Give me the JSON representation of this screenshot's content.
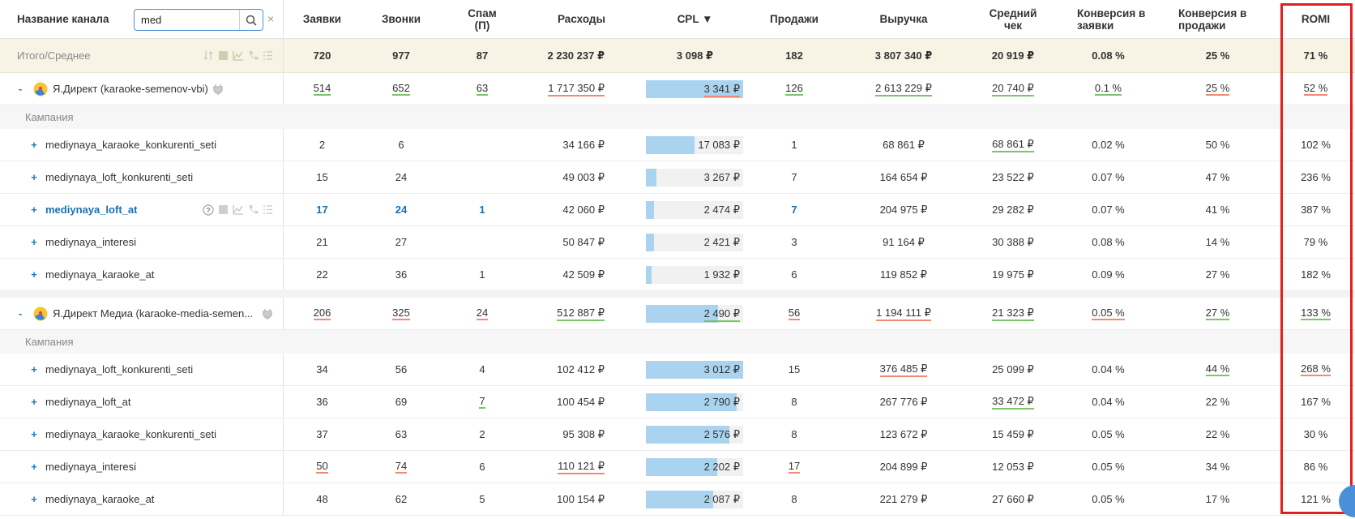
{
  "header": {
    "channel_name": "Название канала",
    "search_value": "med",
    "clear": "×",
    "cols": [
      "Заявки",
      "Звонки",
      "Спам (П)",
      "Расходы",
      "CPL ▼",
      "Продажи",
      "Выручка",
      "Средний чек",
      "Конверсия в заявки",
      "Конверсия в продажи",
      "ROMI"
    ]
  },
  "total": {
    "label": "Итого/Среднее",
    "vals": [
      "720",
      "977",
      "87",
      "2 230 237 ₽",
      "3 098 ₽",
      "182",
      "3 807 340 ₽",
      "20 919 ₽",
      "0.08 %",
      "25 %",
      "71 %"
    ]
  },
  "section_label": "Кампания",
  "groups": [
    {
      "name": "Я.Директ (karaoke-semenov-vbi)",
      "vals": [
        "514",
        "652",
        "63",
        "1 717 350 ₽",
        "3 341 ₽",
        "126",
        "2 613 229 ₽",
        "20 740 ₽",
        "0.1 %",
        "25 %",
        "52 %"
      ],
      "cpl_fill": 1.0,
      "rows": [
        {
          "name": "mediynaya_karaoke_konkurenti_seti",
          "vals": [
            "2",
            "6",
            "",
            "34 166 ₽",
            "17 083 ₽",
            "1",
            "68 861 ₽",
            "68 861 ₽",
            "0.02 %",
            "50 %",
            "102 %"
          ],
          "cpl_fill": 0.5
        },
        {
          "name": "mediynaya_loft_konkurenti_seti",
          "vals": [
            "15",
            "24",
            "",
            "49 003 ₽",
            "3 267 ₽",
            "7",
            "164 654 ₽",
            "23 522 ₽",
            "0.07 %",
            "47 %",
            "236 %"
          ],
          "cpl_fill": 0.11
        },
        {
          "name": "mediynaya_loft_at",
          "vals": [
            "17",
            "24",
            "1",
            "42 060 ₽",
            "2 474 ₽",
            "7",
            "204 975 ₽",
            "29 282 ₽",
            "0.07 %",
            "41 %",
            "387 %"
          ],
          "cpl_fill": 0.08
        },
        {
          "name": "mediynaya_interesi",
          "vals": [
            "21",
            "27",
            "",
            "50 847 ₽",
            "2 421 ₽",
            "3",
            "91 164 ₽",
            "30 388 ₽",
            "0.08 %",
            "14 %",
            "79 %"
          ],
          "cpl_fill": 0.08
        },
        {
          "name": "mediynaya_karaoke_at",
          "vals": [
            "22",
            "36",
            "1",
            "42 509 ₽",
            "1 932 ₽",
            "6",
            "119 852 ₽",
            "19 975 ₽",
            "0.09 %",
            "27 %",
            "182 %"
          ],
          "cpl_fill": 0.06
        }
      ]
    },
    {
      "name": "Я.Директ Медиа (karaoke-media-semen...",
      "vals": [
        "206",
        "325",
        "24",
        "512 887 ₽",
        "2 490 ₽",
        "56",
        "1 194 111 ₽",
        "21 323 ₽",
        "0.05 %",
        "27 %",
        "133 %"
      ],
      "cpl_fill": 0.74,
      "rows": [
        {
          "name": "mediynaya_loft_konkurenti_seti",
          "vals": [
            "34",
            "56",
            "4",
            "102 412 ₽",
            "3 012 ₽",
            "15",
            "376 485 ₽",
            "25 099 ₽",
            "0.04 %",
            "44 %",
            "268 %"
          ],
          "cpl_fill": 1.0
        },
        {
          "name": "mediynaya_loft_at",
          "vals": [
            "36",
            "69",
            "7",
            "100 454 ₽",
            "2 790 ₽",
            "8",
            "267 776 ₽",
            "33 472 ₽",
            "0.04 %",
            "22 %",
            "167 %"
          ],
          "cpl_fill": 0.93
        },
        {
          "name": "mediynaya_karaoke_konkurenti_seti",
          "vals": [
            "37",
            "63",
            "2",
            "95 308 ₽",
            "2 576 ₽",
            "8",
            "123 672 ₽",
            "15 459 ₽",
            "0.05 %",
            "22 %",
            "30 %"
          ],
          "cpl_fill": 0.86
        },
        {
          "name": "mediynaya_interesi",
          "vals": [
            "50",
            "74",
            "6",
            "110 121 ₽",
            "2 202 ₽",
            "17",
            "204 899 ₽",
            "12 053 ₽",
            "0.05 %",
            "34 %",
            "86 %"
          ],
          "cpl_fill": 0.73
        },
        {
          "name": "mediynaya_karaoke_at",
          "vals": [
            "48",
            "62",
            "5",
            "100 154 ₽",
            "2 087 ₽",
            "8",
            "221 279 ₽",
            "27 660 ₽",
            "0.05 %",
            "17 %",
            "121 %"
          ],
          "cpl_fill": 0.69
        }
      ]
    }
  ],
  "colors": {
    "accent": "#1a7bc4",
    "cpl_bar": "#a9d3ee",
    "total_bg": "#f7f4e6",
    "highlight_frame": "#e02020"
  }
}
